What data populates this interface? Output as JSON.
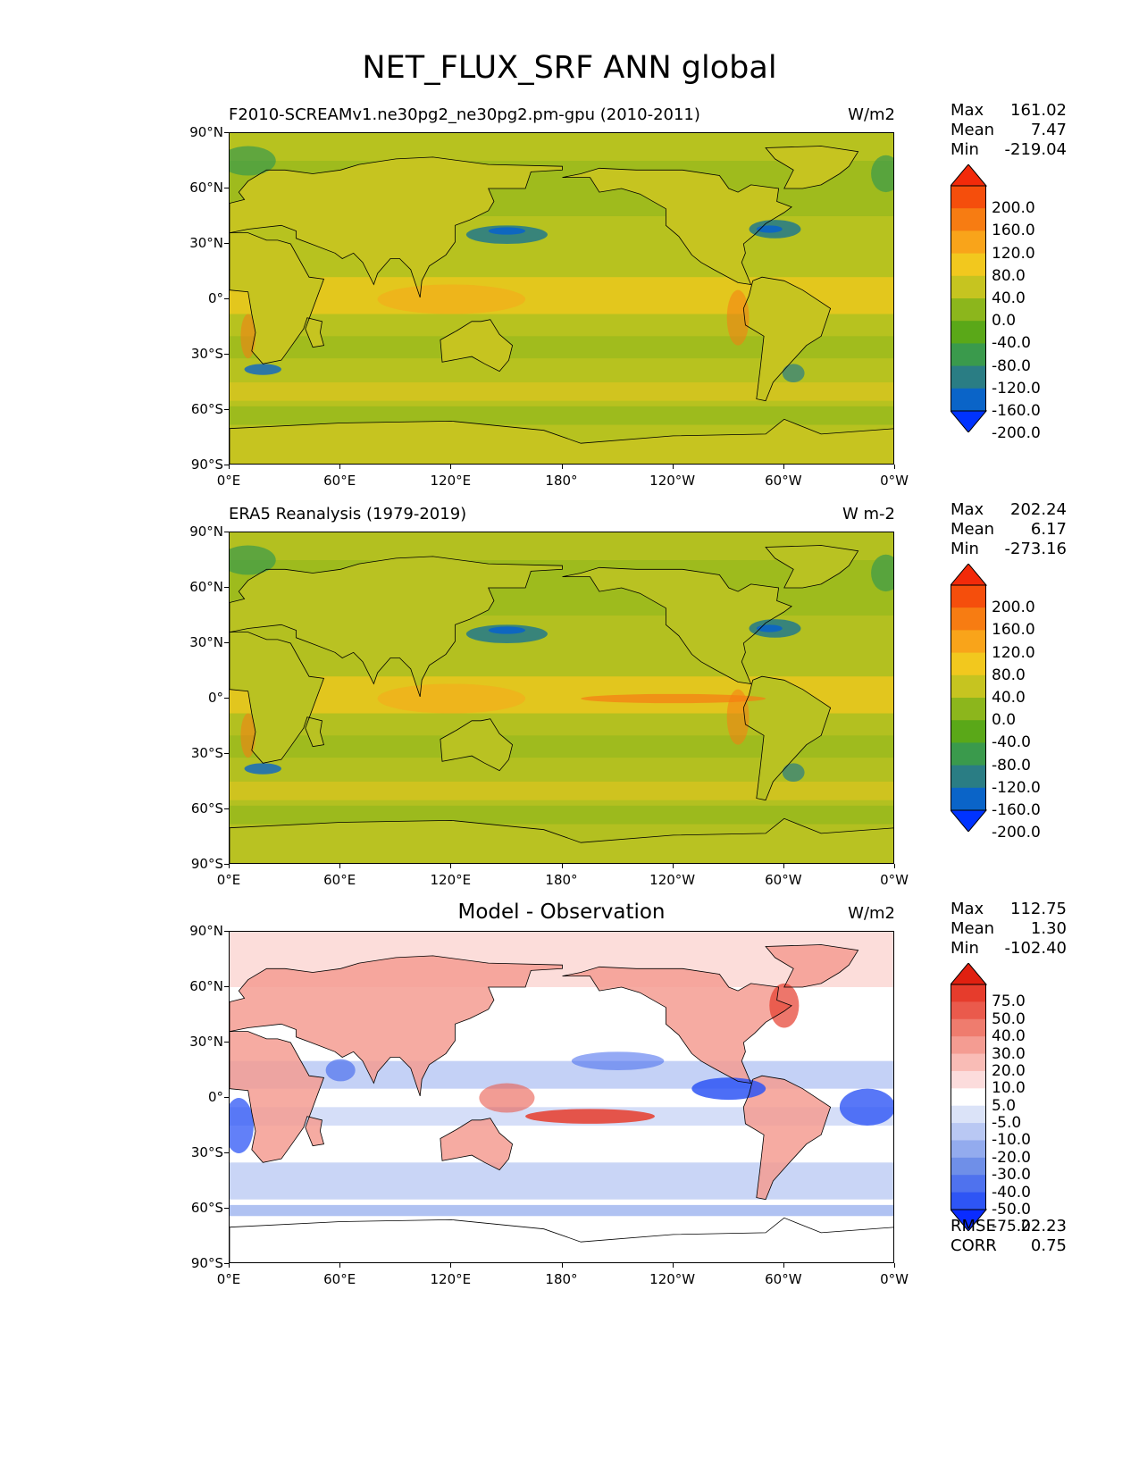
{
  "figure_title": "NET_FLUX_SRF ANN global",
  "x_ticks": [
    "0°E",
    "60°E",
    "120°E",
    "180°",
    "120°W",
    "60°W",
    "0°W"
  ],
  "y_ticks": [
    "90°N",
    "60°N",
    "30°N",
    "0°",
    "30°S",
    "60°S",
    "90°S"
  ],
  "panels": [
    {
      "title": "F2010-SCREAMv1.ne30pg2_ne30pg2.pm-gpu (2010-2011)",
      "units": "W/m2",
      "stats": {
        "max_label": "Max",
        "max": "161.02",
        "mean_label": "Mean",
        "mean": "7.47",
        "min_label": "Min",
        "min": "-219.04"
      },
      "colorbar_labels": [
        "200.0",
        "160.0",
        "120.0",
        "80.0",
        "40.0",
        "0.0",
        "-40.0",
        "-80.0",
        "-120.0",
        "-160.0",
        "-200.0"
      ],
      "colorbar_colors": [
        "#0033ff",
        "#0a64c8",
        "#2a7d84",
        "#3a9a4c",
        "#5aa818",
        "#8cb61c",
        "#c6c420",
        "#f2c81e",
        "#f9a41a",
        "#f77c12",
        "#f54e0c",
        "#f22a0a"
      ],
      "base_color": "#b7c21f"
    },
    {
      "title": "ERA5 Reanalysis (1979-2019)",
      "units": "W m-2",
      "stats": {
        "max_label": "Max",
        "max": "202.24",
        "mean_label": "Mean",
        "mean": "6.17",
        "min_label": "Min",
        "min": "-273.16"
      },
      "colorbar_labels": [
        "200.0",
        "160.0",
        "120.0",
        "80.0",
        "40.0",
        "0.0",
        "-40.0",
        "-80.0",
        "-120.0",
        "-160.0",
        "-200.0"
      ],
      "colorbar_colors": [
        "#0033ff",
        "#0a64c8",
        "#2a7d84",
        "#3a9a4c",
        "#5aa818",
        "#8cb61c",
        "#c6c420",
        "#f2c81e",
        "#f9a41a",
        "#f77c12",
        "#f54e0c",
        "#f22a0a"
      ],
      "base_color": "#b3c020"
    },
    {
      "title": "Model - Observation",
      "units": "W/m2",
      "stats": {
        "max_label": "Max",
        "max": "112.75",
        "mean_label": "Mean",
        "mean": "1.30",
        "min_label": "Min",
        "min": "-102.40"
      },
      "colorbar_labels": [
        "75.0",
        "50.0",
        "40.0",
        "30.0",
        "20.0",
        "10.0",
        "5.0",
        "-5.0",
        "-10.0",
        "-20.0",
        "-30.0",
        "-40.0",
        "-50.0",
        "-75.0"
      ],
      "colorbar_colors": [
        "#0a2cff",
        "#2e55f5",
        "#4f72ee",
        "#6f8fe8",
        "#93abee",
        "#b9c8f3",
        "#dbe3f8",
        "#ffffff",
        "#fcdcdc",
        "#f9bcb6",
        "#f49c92",
        "#ef7c6e",
        "#ea5a4c",
        "#e63c2c",
        "#e02010"
      ],
      "extra": {
        "rmse_label": "RMSE",
        "rmse": "22.23",
        "corr_label": "CORR",
        "corr": "0.75"
      }
    }
  ]
}
